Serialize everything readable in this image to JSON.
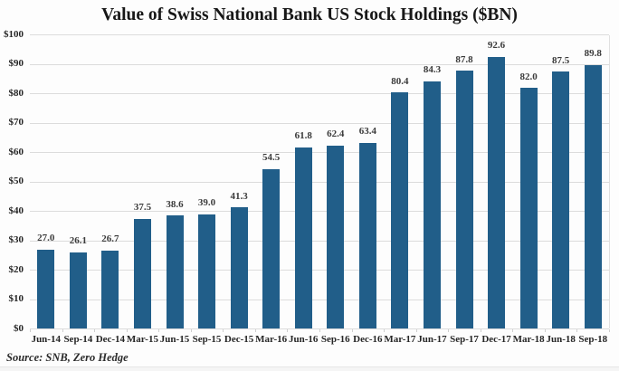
{
  "chart_data": {
    "type": "bar",
    "title": "Value of Swiss National Bank US Stock Holdings ($BN)",
    "categories": [
      "Jun-14",
      "Sep-14",
      "Dec-14",
      "Mar-15",
      "Jun-15",
      "Sep-15",
      "Dec-15",
      "Mar-16",
      "Jun-16",
      "Sep-16",
      "Dec-16",
      "Mar-17",
      "Jun-17",
      "Sep-17",
      "Dec-17",
      "Mar-18",
      "Jun-18",
      "Sep-18"
    ],
    "values": [
      27.0,
      26.1,
      26.7,
      37.5,
      38.6,
      39.0,
      41.3,
      54.5,
      61.8,
      62.4,
      63.4,
      80.4,
      84.3,
      87.8,
      92.6,
      82.0,
      87.5,
      89.8
    ],
    "value_labels": [
      "27.0",
      "26.1",
      "26.7",
      "37.5",
      "38.6",
      "39.0",
      "41.3",
      "54.5",
      "61.8",
      "62.4",
      "63.4",
      "80.4",
      "84.3",
      "87.8",
      "92.6",
      "82.0",
      "87.5",
      "89.8"
    ],
    "xlabel": "",
    "ylabel": "",
    "ylim": [
      0,
      100
    ],
    "ytick_step": 10,
    "ytick_labels": [
      "$0",
      "$10",
      "$20",
      "$30",
      "$40",
      "$50",
      "$60",
      "$70",
      "$80",
      "$90",
      "$100"
    ],
    "grid": "horizontal",
    "legend": "none",
    "source_note": "Source: SNB, Zero Hedge"
  },
  "colors": {
    "bar": "#215e89",
    "gridline": "#dcdcdc",
    "title_text": "#171717",
    "tick_text": "#262626",
    "value_label_text": "#3b3b3b",
    "background": "#fdfdfd"
  }
}
